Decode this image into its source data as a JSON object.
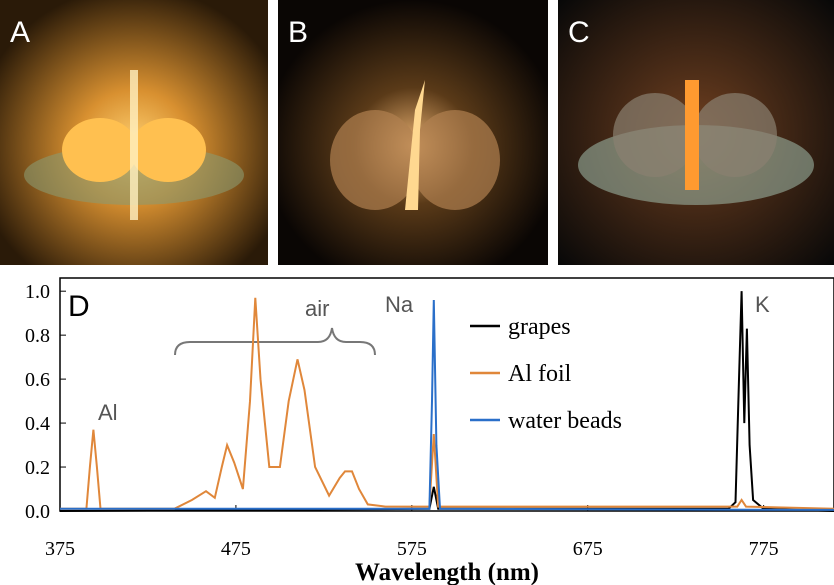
{
  "photos": [
    {
      "label": "A"
    },
    {
      "label": "B"
    },
    {
      "label": "C"
    }
  ],
  "chart_data": {
    "type": "line",
    "panel_label": "D",
    "x_label": "Wavelength (nm)",
    "annotations": [
      "Al",
      "air",
      "Na",
      "K"
    ],
    "xlim": [
      375,
      815
    ],
    "xticks": [
      375,
      475,
      575,
      675,
      775
    ],
    "ylim": [
      0,
      1.06
    ],
    "yticks": [
      {
        "value": 0,
        "label": "0.0"
      },
      0.2,
      0.4,
      0.6,
      0.8,
      {
        "value": 1,
        "label": "1.0"
      }
    ],
    "legend": "top-right",
    "series": [
      {
        "name": "grapes",
        "color": "#000000",
        "x": [
          375,
          585,
          587.5,
          590,
          755,
          759,
          761,
          762.5,
          764,
          765.5,
          767,
          769,
          775,
          815
        ],
        "values": [
          0,
          0.01,
          0.11,
          0.01,
          0.01,
          0.04,
          0.6,
          1.0,
          0.4,
          0.83,
          0.3,
          0.05,
          0.01,
          0
        ]
      },
      {
        "name": "Al foil",
        "color": "#e0873a",
        "x": [
          375,
          390,
          392,
          394,
          396,
          398,
          440,
          450,
          458,
          463,
          467,
          470,
          474,
          479,
          483,
          486,
          489,
          494,
          500,
          505,
          510,
          514,
          520,
          528,
          534,
          537,
          541,
          545,
          550,
          560,
          585,
          587.5,
          590,
          700,
          760,
          762.5,
          765,
          815
        ],
        "values": [
          0.01,
          0.01,
          0.2,
          0.37,
          0.2,
          0.01,
          0.01,
          0.05,
          0.09,
          0.06,
          0.2,
          0.3,
          0.22,
          0.1,
          0.5,
          0.97,
          0.6,
          0.2,
          0.2,
          0.5,
          0.69,
          0.55,
          0.2,
          0.07,
          0.15,
          0.18,
          0.18,
          0.1,
          0.03,
          0.02,
          0.02,
          0.35,
          0.02,
          0.02,
          0.02,
          0.05,
          0.02,
          0.01
        ]
      },
      {
        "name": "water beads",
        "color": "#2a6fc9",
        "x": [
          375,
          585,
          586.5,
          587.5,
          589,
          591,
          815
        ],
        "values": [
          0.01,
          0.01,
          0.5,
          0.96,
          0.3,
          0.01,
          0.005
        ]
      }
    ]
  }
}
